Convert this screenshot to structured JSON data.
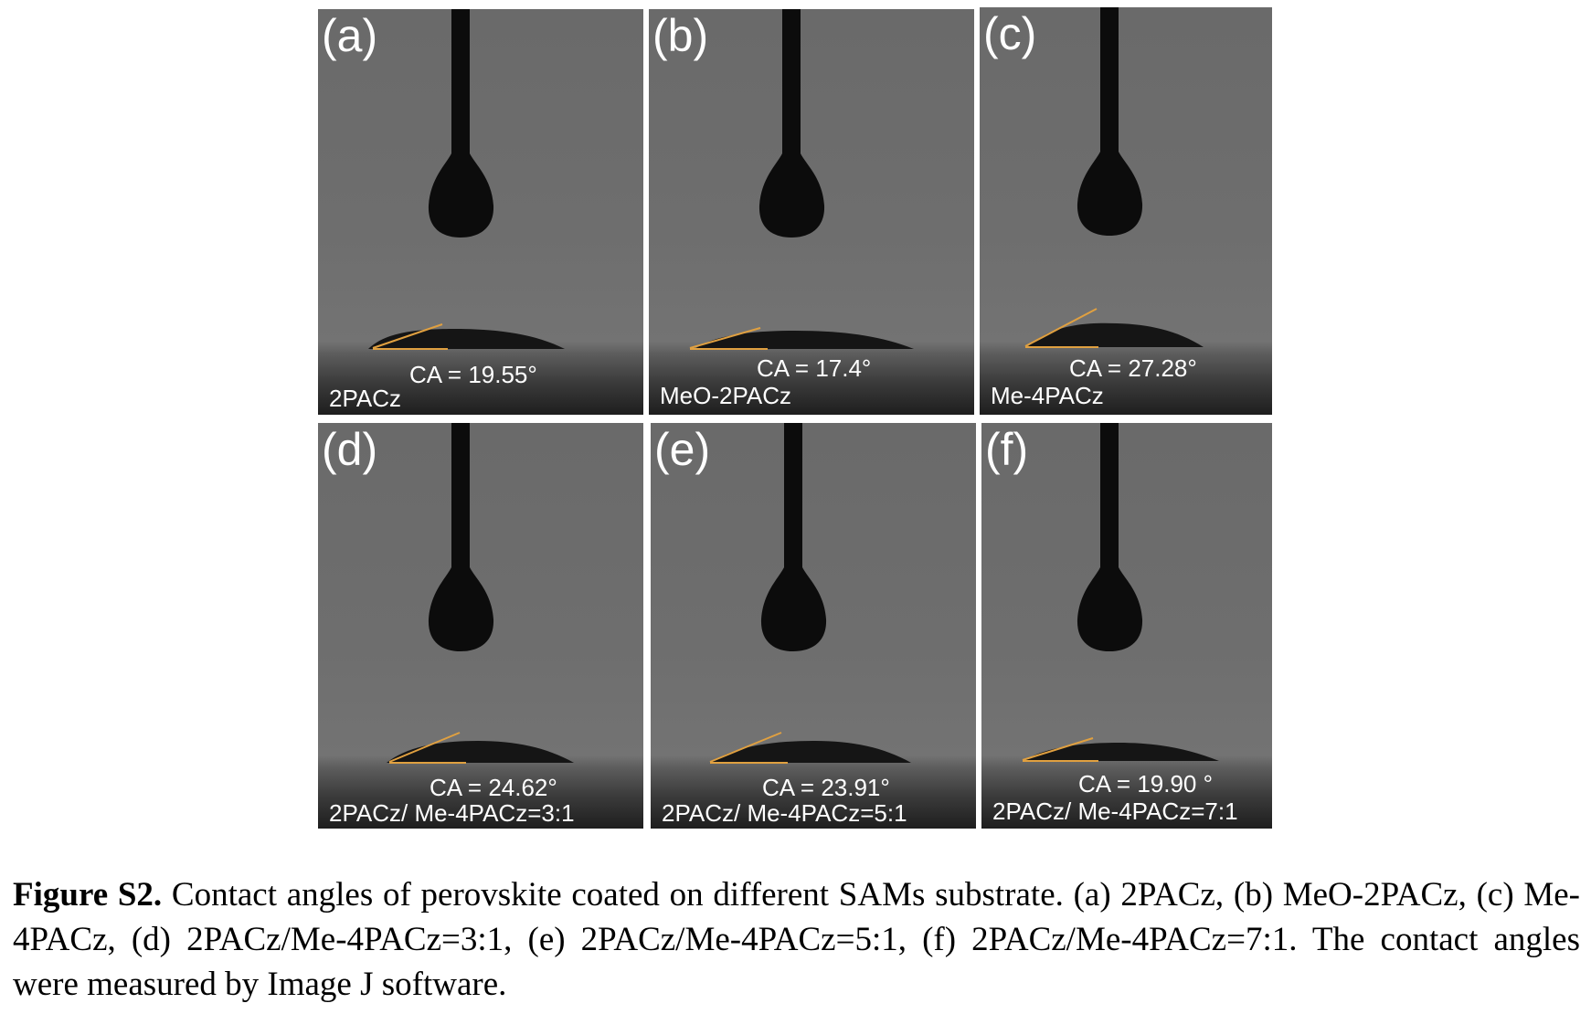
{
  "panels": [
    {
      "letter": "(a)",
      "ca": "CA = 19.55°",
      "sam": "2PACz"
    },
    {
      "letter": "(b)",
      "ca": "CA = 17.4°",
      "sam": "MeO-2PACz"
    },
    {
      "letter": "(c)",
      "ca": "CA = 27.28°",
      "sam": "Me-4PACz"
    },
    {
      "letter": "(d)",
      "ca": "CA = 24.62°",
      "sam": "2PACz/ Me-4PACz=3:1"
    },
    {
      "letter": "(e)",
      "ca": "CA = 23.91°",
      "sam": "2PACz/ Me-4PACz=5:1"
    },
    {
      "letter": "(f)",
      "ca": "CA = 19.90 °",
      "sam": "2PACz/ Me-4PACz=7:1"
    }
  ],
  "caption": {
    "label": "Figure S2.",
    "text": "Contact angles of perovskite coated on different SAMs substrate. (a) 2PACz, (b) MeO-2PACz, (c) Me-4PACz, (d) 2PACz/Me-4PACz=3:1, (e) 2PACz/Me-4PACz=5:1, (f) 2PACz/Me-4PACz=7:1. The contact angles were measured by Image J software."
  },
  "colors": {
    "tangent_line": "#e0a040",
    "droplet": "#0c0c0c"
  }
}
